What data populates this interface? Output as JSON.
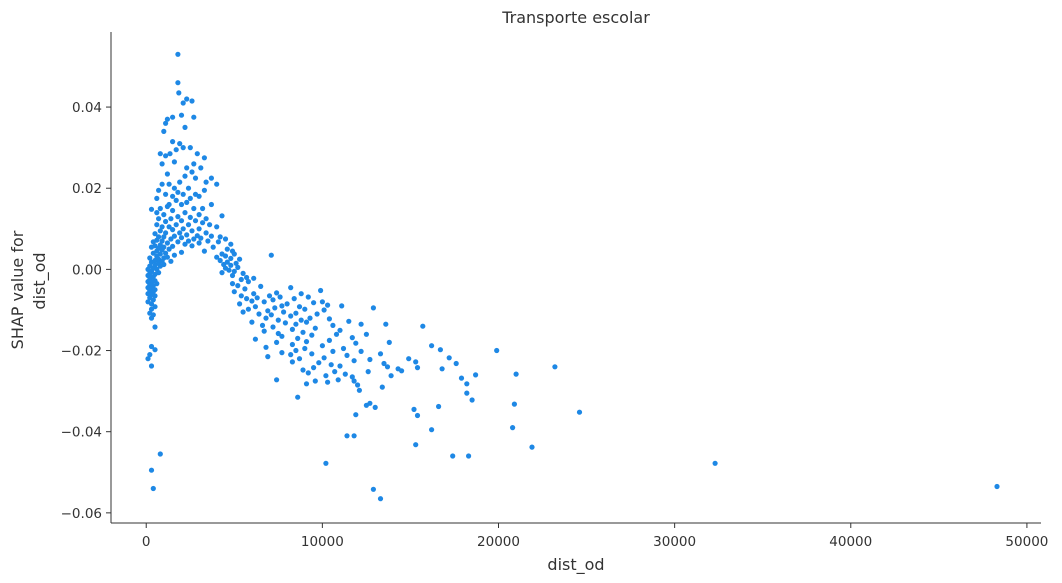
{
  "chart_data": {
    "type": "scatter",
    "title": "Transporte escolar",
    "xlabel": "dist_od",
    "ylabel_lines": [
      "SHAP value for",
      "dist_od"
    ],
    "xlim": [
      -2000,
      50800
    ],
    "ylim": [
      -0.0625,
      0.0585
    ],
    "x_ticks": [
      0,
      10000,
      20000,
      30000,
      40000,
      50000
    ],
    "x_tick_labels": [
      "0",
      "10000",
      "20000",
      "30000",
      "40000",
      "50000"
    ],
    "y_ticks": [
      -0.06,
      -0.04,
      -0.02,
      0.0,
      0.02,
      0.04
    ],
    "y_tick_labels": [
      "−0.06",
      "−0.04",
      "−0.02",
      "0.00",
      "0.02",
      "0.04"
    ],
    "grid": false,
    "color": "#1e88e5",
    "points": [
      [
        1800,
        0.053
      ],
      [
        1800,
        0.046
      ],
      [
        1850,
        0.0435
      ],
      [
        2300,
        0.042
      ],
      [
        2600,
        0.0415
      ],
      [
        2100,
        0.041
      ],
      [
        1500,
        0.0375
      ],
      [
        2700,
        0.0375
      ],
      [
        2000,
        0.038
      ],
      [
        1200,
        0.037
      ],
      [
        1100,
        0.036
      ],
      [
        2200,
        0.035
      ],
      [
        1000,
        0.034
      ],
      [
        1500,
        0.0315
      ],
      [
        1900,
        0.031
      ],
      [
        2100,
        0.03
      ],
      [
        2500,
        0.03
      ],
      [
        1700,
        0.0295
      ],
      [
        800,
        0.0285
      ],
      [
        1100,
        0.028
      ],
      [
        1350,
        0.0285
      ],
      [
        2900,
        0.0285
      ],
      [
        3300,
        0.0275
      ],
      [
        2700,
        0.026
      ],
      [
        1600,
        0.0265
      ],
      [
        900,
        0.026
      ],
      [
        2300,
        0.025
      ],
      [
        3100,
        0.025
      ],
      [
        2600,
        0.024
      ],
      [
        1200,
        0.0235
      ],
      [
        2200,
        0.023
      ],
      [
        2800,
        0.0225
      ],
      [
        3700,
        0.0225
      ],
      [
        3400,
        0.0215
      ],
      [
        4000,
        0.021
      ],
      [
        1900,
        0.0215
      ],
      [
        900,
        0.021
      ],
      [
        1300,
        0.021
      ],
      [
        2400,
        0.02
      ],
      [
        1600,
        0.02
      ],
      [
        3300,
        0.0195
      ],
      [
        1800,
        0.019
      ],
      [
        700,
        0.0195
      ],
      [
        2100,
        0.0185
      ],
      [
        2800,
        0.0185
      ],
      [
        1100,
        0.0185
      ],
      [
        3000,
        0.018
      ],
      [
        1500,
        0.018
      ],
      [
        2500,
        0.0175
      ],
      [
        600,
        0.0175
      ],
      [
        1700,
        0.017
      ],
      [
        2300,
        0.0165
      ],
      [
        3700,
        0.016
      ],
      [
        1300,
        0.016
      ],
      [
        2000,
        0.016
      ],
      [
        3200,
        0.015
      ],
      [
        1200,
        0.0155
      ],
      [
        800,
        0.015
      ],
      [
        2700,
        0.015
      ],
      [
        300,
        0.0148
      ],
      [
        600,
        0.014
      ],
      [
        1500,
        0.0145
      ],
      [
        2200,
        0.014
      ],
      [
        3000,
        0.0135
      ],
      [
        4300,
        0.0132
      ],
      [
        1000,
        0.0135
      ],
      [
        1800,
        0.013
      ],
      [
        2500,
        0.0128
      ],
      [
        3400,
        0.0125
      ],
      [
        1400,
        0.0125
      ],
      [
        700,
        0.0125
      ],
      [
        2000,
        0.012
      ],
      [
        2800,
        0.012
      ],
      [
        3200,
        0.0115
      ],
      [
        1100,
        0.0118
      ],
      [
        1700,
        0.011
      ],
      [
        2400,
        0.011
      ],
      [
        3600,
        0.011
      ],
      [
        4000,
        0.0105
      ],
      [
        600,
        0.011
      ],
      [
        900,
        0.0105
      ],
      [
        1300,
        0.0105
      ],
      [
        2100,
        0.01
      ],
      [
        3000,
        0.01
      ],
      [
        1500,
        0.0098
      ],
      [
        2600,
        0.0095
      ],
      [
        800,
        0.0095
      ],
      [
        1900,
        0.009
      ],
      [
        3400,
        0.009
      ],
      [
        1100,
        0.009
      ],
      [
        500,
        0.0088
      ],
      [
        2300,
        0.0085
      ],
      [
        2900,
        0.0083
      ],
      [
        1600,
        0.0082
      ],
      [
        3700,
        0.0082
      ],
      [
        4200,
        0.008
      ],
      [
        1000,
        0.008
      ],
      [
        700,
        0.008
      ],
      [
        2000,
        0.0078
      ],
      [
        3100,
        0.0077
      ],
      [
        2700,
        0.0075
      ],
      [
        4500,
        0.0075
      ],
      [
        1400,
        0.0075
      ],
      [
        600,
        0.0072
      ],
      [
        3500,
        0.007
      ],
      [
        900,
        0.007
      ],
      [
        2400,
        0.007
      ],
      [
        4100,
        0.0068
      ],
      [
        1800,
        0.0068
      ],
      [
        400,
        0.0068
      ],
      [
        3000,
        0.0065
      ],
      [
        1200,
        0.0065
      ],
      [
        2200,
        0.0062
      ],
      [
        4800,
        0.0062
      ],
      [
        800,
        0.006
      ],
      [
        500,
        0.0058
      ],
      [
        2600,
        0.0058
      ],
      [
        1500,
        0.0057
      ],
      [
        1000,
        0.0055
      ],
      [
        3800,
        0.0055
      ],
      [
        300,
        0.0055
      ],
      [
        4600,
        0.005
      ],
      [
        700,
        0.0052
      ],
      [
        1300,
        0.005
      ],
      [
        3300,
        0.0045
      ],
      [
        900,
        0.0048
      ],
      [
        600,
        0.0045
      ],
      [
        4900,
        0.0045
      ],
      [
        2000,
        0.0042
      ],
      [
        1100,
        0.004
      ],
      [
        4300,
        0.0038
      ],
      [
        400,
        0.004
      ],
      [
        800,
        0.0038
      ],
      [
        5000,
        0.0038
      ],
      [
        1600,
        0.0035
      ],
      [
        7100,
        0.0035
      ],
      [
        4500,
        0.0033
      ],
      [
        600,
        0.0032
      ],
      [
        1200,
        0.003
      ],
      [
        4000,
        0.003
      ],
      [
        200,
        0.0028
      ],
      [
        1000,
        0.0028
      ],
      [
        4800,
        0.0027
      ],
      [
        5300,
        0.0025
      ],
      [
        700,
        0.0025
      ],
      [
        4200,
        0.0022
      ],
      [
        500,
        0.0022
      ],
      [
        900,
        0.002
      ],
      [
        1400,
        0.002
      ],
      [
        4600,
        0.0018
      ],
      [
        300,
        0.0018
      ],
      [
        5100,
        0.0015
      ],
      [
        700,
        0.0015
      ],
      [
        4400,
        0.0012
      ],
      [
        1000,
        0.0012
      ],
      [
        500,
        0.001
      ],
      [
        4800,
        0.001
      ],
      [
        200,
        0.0008
      ],
      [
        800,
        0.0008
      ],
      [
        5200,
        0.0005
      ],
      [
        400,
        0.0003
      ],
      [
        4500,
        0.0003
      ],
      [
        600,
        0.0
      ],
      [
        100,
        0.0
      ],
      [
        4700,
        -0.0002
      ],
      [
        300,
        -0.0005
      ],
      [
        5000,
        -0.0005
      ],
      [
        700,
        -0.0008
      ],
      [
        4300,
        -0.0008
      ],
      [
        200,
        -0.001
      ],
      [
        5500,
        -0.001
      ],
      [
        500,
        -0.0012
      ],
      [
        4900,
        -0.0015
      ],
      [
        100,
        -0.0015
      ],
      [
        400,
        -0.0018
      ],
      [
        5700,
        -0.002
      ],
      [
        300,
        -0.002
      ],
      [
        6100,
        -0.0022
      ],
      [
        200,
        -0.0025
      ],
      [
        5400,
        -0.0025
      ],
      [
        500,
        -0.0028
      ],
      [
        100,
        -0.003
      ],
      [
        5800,
        -0.003
      ],
      [
        300,
        -0.0032
      ],
      [
        4900,
        -0.0035
      ],
      [
        600,
        -0.0035
      ],
      [
        200,
        -0.0038
      ],
      [
        5200,
        -0.004
      ],
      [
        400,
        -0.004
      ],
      [
        6500,
        -0.0042
      ],
      [
        100,
        -0.0045
      ],
      [
        8200,
        -0.0045
      ],
      [
        300,
        -0.0045
      ],
      [
        5600,
        -0.0048
      ],
      [
        500,
        -0.005
      ],
      [
        9900,
        -0.0052
      ],
      [
        200,
        -0.0052
      ],
      [
        5000,
        -0.0055
      ],
      [
        400,
        -0.0055
      ],
      [
        7400,
        -0.0058
      ],
      [
        6100,
        -0.006
      ],
      [
        100,
        -0.006
      ],
      [
        8800,
        -0.006
      ],
      [
        300,
        -0.0062
      ],
      [
        7000,
        -0.0065
      ],
      [
        5400,
        -0.0065
      ],
      [
        500,
        -0.0065
      ],
      [
        7600,
        -0.0068
      ],
      [
        9200,
        -0.0068
      ],
      [
        200,
        -0.007
      ],
      [
        6300,
        -0.007
      ],
      [
        5700,
        -0.0072
      ],
      [
        8400,
        -0.0072
      ],
      [
        400,
        -0.0075
      ],
      [
        7200,
        -0.0075
      ],
      [
        6000,
        -0.0078
      ],
      [
        10000,
        -0.008
      ],
      [
        100,
        -0.008
      ],
      [
        6700,
        -0.008
      ],
      [
        9500,
        -0.0082
      ],
      [
        300,
        -0.0085
      ],
      [
        5300,
        -0.0085
      ],
      [
        8000,
        -0.0085
      ],
      [
        10300,
        -0.0088
      ],
      [
        7700,
        -0.009
      ],
      [
        11100,
        -0.009
      ],
      [
        6200,
        -0.0092
      ],
      [
        500,
        -0.0092
      ],
      [
        8700,
        -0.0092
      ],
      [
        7300,
        -0.0095
      ],
      [
        300,
        -0.0098
      ],
      [
        5800,
        -0.0098
      ],
      [
        9000,
        -0.0098
      ],
      [
        10100,
        -0.01
      ],
      [
        12900,
        -0.0095
      ],
      [
        6900,
        -0.0102
      ],
      [
        7800,
        -0.0105
      ],
      [
        5500,
        -0.0105
      ],
      [
        200,
        -0.0108
      ],
      [
        8500,
        -0.0108
      ],
      [
        6400,
        -0.011
      ],
      [
        9700,
        -0.011
      ],
      [
        7100,
        -0.0112
      ],
      [
        400,
        -0.0112
      ],
      [
        8200,
        -0.0115
      ],
      [
        9300,
        -0.012
      ],
      [
        6800,
        -0.012
      ],
      [
        300,
        -0.012
      ],
      [
        10400,
        -0.0122
      ],
      [
        7500,
        -0.0125
      ],
      [
        8800,
        -0.0125
      ],
      [
        11500,
        -0.0128
      ],
      [
        6000,
        -0.013
      ],
      [
        9100,
        -0.013
      ],
      [
        7900,
        -0.0132
      ],
      [
        12200,
        -0.0135
      ],
      [
        8500,
        -0.0135
      ],
      [
        6600,
        -0.0138
      ],
      [
        13600,
        -0.0135
      ],
      [
        10600,
        -0.0138
      ],
      [
        15700,
        -0.014
      ],
      [
        7200,
        -0.0142
      ],
      [
        500,
        -0.0142
      ],
      [
        9600,
        -0.0145
      ],
      [
        8300,
        -0.0148
      ],
      [
        11000,
        -0.015
      ],
      [
        6700,
        -0.0152
      ],
      [
        8900,
        -0.0155
      ],
      [
        7500,
        -0.0158
      ],
      [
        10800,
        -0.016
      ],
      [
        12500,
        -0.016
      ],
      [
        9400,
        -0.0162
      ],
      [
        7700,
        -0.0165
      ],
      [
        11700,
        -0.0168
      ],
      [
        8600,
        -0.017
      ],
      [
        6200,
        -0.0172
      ],
      [
        10400,
        -0.0175
      ],
      [
        9100,
        -0.0178
      ],
      [
        13800,
        -0.018
      ],
      [
        7400,
        -0.018
      ],
      [
        11900,
        -0.0182
      ],
      [
        8300,
        -0.0185
      ],
      [
        16200,
        -0.0188
      ],
      [
        10000,
        -0.0188
      ],
      [
        300,
        -0.019
      ],
      [
        6800,
        -0.0192
      ],
      [
        11200,
        -0.0195
      ],
      [
        9000,
        -0.0195
      ],
      [
        16700,
        -0.0198
      ],
      [
        500,
        -0.0198
      ],
      [
        8500,
        -0.02
      ],
      [
        12200,
        -0.0202
      ],
      [
        10600,
        -0.0202
      ],
      [
        19900,
        -0.02
      ],
      [
        7700,
        -0.0205
      ],
      [
        9400,
        -0.0208
      ],
      [
        13300,
        -0.0208
      ],
      [
        200,
        -0.021
      ],
      [
        8200,
        -0.021
      ],
      [
        11400,
        -0.0212
      ],
      [
        6900,
        -0.0215
      ],
      [
        17200,
        -0.0218
      ],
      [
        10100,
        -0.0218
      ],
      [
        8700,
        -0.022
      ],
      [
        14900,
        -0.022
      ],
      [
        100,
        -0.022
      ],
      [
        12700,
        -0.0222
      ],
      [
        11800,
        -0.0225
      ],
      [
        8300,
        -0.0228
      ],
      [
        15300,
        -0.0228
      ],
      [
        9800,
        -0.023
      ],
      [
        13500,
        -0.0232
      ],
      [
        17600,
        -0.0232
      ],
      [
        10500,
        -0.0235
      ],
      [
        300,
        -0.0238
      ],
      [
        11000,
        -0.0238
      ],
      [
        13700,
        -0.024
      ],
      [
        23200,
        -0.024
      ],
      [
        15400,
        -0.0242
      ],
      [
        9500,
        -0.0242
      ],
      [
        14300,
        -0.0245
      ],
      [
        16800,
        -0.0245
      ],
      [
        8900,
        -0.0248
      ],
      [
        14500,
        -0.025
      ],
      [
        12600,
        -0.0252
      ],
      [
        10700,
        -0.0252
      ],
      [
        9200,
        -0.0255
      ],
      [
        11300,
        -0.0258
      ],
      [
        21000,
        -0.0258
      ],
      [
        18700,
        -0.026
      ],
      [
        10200,
        -0.0262
      ],
      [
        13900,
        -0.0262
      ],
      [
        11700,
        -0.0265
      ],
      [
        17900,
        -0.0268
      ],
      [
        7400,
        -0.0272
      ],
      [
        10900,
        -0.0272
      ],
      [
        9600,
        -0.0275
      ],
      [
        11800,
        -0.0275
      ],
      [
        10300,
        -0.0278
      ],
      [
        18200,
        -0.0282
      ],
      [
        9100,
        -0.0282
      ],
      [
        12000,
        -0.0285
      ],
      [
        13400,
        -0.029
      ],
      [
        12100,
        -0.0298
      ],
      [
        18200,
        -0.0305
      ],
      [
        8600,
        -0.0315
      ],
      [
        18500,
        -0.0322
      ],
      [
        12700,
        -0.033
      ],
      [
        20900,
        -0.0332
      ],
      [
        12500,
        -0.0335
      ],
      [
        13000,
        -0.034
      ],
      [
        16600,
        -0.0338
      ],
      [
        15200,
        -0.0345
      ],
      [
        24600,
        -0.0352
      ],
      [
        11900,
        -0.0358
      ],
      [
        15400,
        -0.036
      ],
      [
        20800,
        -0.039
      ],
      [
        16200,
        -0.0395
      ],
      [
        11400,
        -0.041
      ],
      [
        11800,
        -0.041
      ],
      [
        15300,
        -0.0432
      ],
      [
        21900,
        -0.0438
      ],
      [
        17400,
        -0.046
      ],
      [
        18300,
        -0.046
      ],
      [
        800,
        -0.0455
      ],
      [
        10200,
        -0.0478
      ],
      [
        32300,
        -0.0478
      ],
      [
        300,
        -0.0495
      ],
      [
        48300,
        -0.0535
      ],
      [
        400,
        -0.054
      ],
      [
        12900,
        -0.0542
      ],
      [
        13300,
        -0.0565
      ]
    ]
  }
}
